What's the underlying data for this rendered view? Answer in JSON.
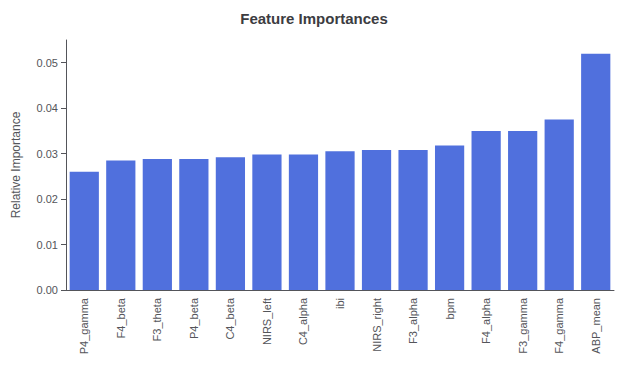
{
  "chart_data": {
    "type": "bar",
    "title": "Feature Importances",
    "ylabel": "Relative Importance",
    "categories": [
      "P4_gamma",
      "F4_beta",
      "F3_theta",
      "P4_beta",
      "C4_beta",
      "NIRS_left",
      "C4_alpha",
      "ibi",
      "NIRS_right",
      "F3_alpha",
      "bpm",
      "F4_alpha",
      "F3_gamma",
      "F4_gamma",
      "ABP_mean"
    ],
    "values": [
      0.026,
      0.0285,
      0.0288,
      0.0288,
      0.0292,
      0.0298,
      0.0298,
      0.0305,
      0.0308,
      0.0308,
      0.0318,
      0.035,
      0.035,
      0.0375,
      0.052
    ],
    "ylim": [
      0.0,
      0.055
    ],
    "yticks": [
      {
        "value": 0,
        "label": "0.00"
      },
      0.01,
      0.02,
      0.03,
      0.04,
      0.05
    ],
    "grid": false
  }
}
